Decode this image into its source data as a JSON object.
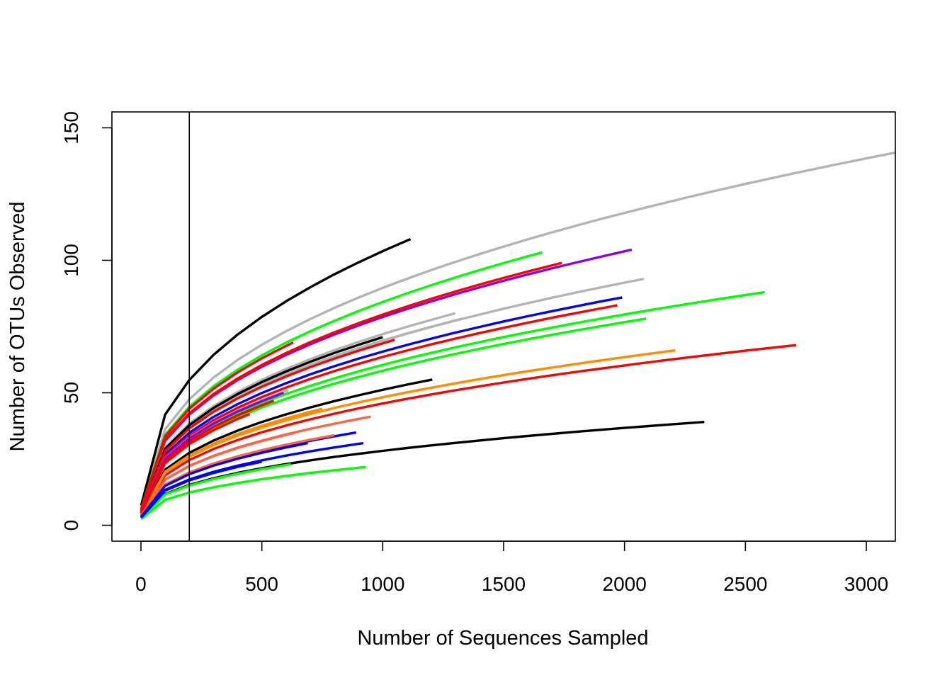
{
  "chart_data": {
    "type": "line",
    "title": "",
    "xlabel": "Number of Sequences Sampled",
    "ylabel": "Number of OTUs Observed",
    "xlim": [
      -120,
      3120
    ],
    "ylim": [
      -6,
      156
    ],
    "xticks": [
      0,
      500,
      1000,
      1500,
      2000,
      2500,
      3000
    ],
    "yticks": [
      0,
      50,
      100,
      150
    ],
    "vline": 200,
    "grid": false,
    "legend": "none",
    "series": [
      {
        "color": "#b3b3b3",
        "max_x": 3140,
        "max_y": 141
      },
      {
        "color": "#000000",
        "max_x": 1115,
        "max_y": 108
      },
      {
        "color": "#00ff00",
        "max_x": 1660,
        "max_y": 103
      },
      {
        "color": "#8a00ee",
        "max_x": 2030,
        "max_y": 104
      },
      {
        "color": "#ff0000",
        "max_x": 1740,
        "max_y": 99
      },
      {
        "color": "#b3b3b3",
        "max_x": 2080,
        "max_y": 93
      },
      {
        "color": "#0000ff",
        "max_x": 1990,
        "max_y": 86
      },
      {
        "color": "#00ff00",
        "max_x": 2580,
        "max_y": 88
      },
      {
        "color": "#ff0000",
        "max_x": 1970,
        "max_y": 83
      },
      {
        "color": "#b3b3b3",
        "max_x": 1300,
        "max_y": 80
      },
      {
        "color": "#b3b3b3",
        "max_x": 1330,
        "max_y": 78
      },
      {
        "color": "#00ff00",
        "max_x": 2090,
        "max_y": 78
      },
      {
        "color": "#000000",
        "max_x": 1000,
        "max_y": 71
      },
      {
        "color": "#ff0000",
        "max_x": 1050,
        "max_y": 70
      },
      {
        "color": "#ff0000",
        "max_x": 630,
        "max_y": 69
      },
      {
        "color": "#ff0000",
        "max_x": 2710,
        "max_y": 68
      },
      {
        "color": "#ff8c00",
        "max_x": 2210,
        "max_y": 66
      },
      {
        "color": "#000000",
        "max_x": 1205,
        "max_y": 55
      },
      {
        "color": "#b3b3b3",
        "max_x": 610,
        "max_y": 51
      },
      {
        "color": "#8a00ee",
        "max_x": 590,
        "max_y": 50
      },
      {
        "color": "#ff0000",
        "max_x": 550,
        "max_y": 47
      },
      {
        "color": "#ff8c00",
        "max_x": 750,
        "max_y": 44
      },
      {
        "color": "#ff0000",
        "max_x": 450,
        "max_y": 42
      },
      {
        "color": "#ff6347",
        "max_x": 950,
        "max_y": 41
      },
      {
        "color": "#0000ff",
        "max_x": 890,
        "max_y": 35
      },
      {
        "color": "#ff6347",
        "max_x": 640,
        "max_y": 35
      },
      {
        "color": "#ff6347",
        "max_x": 800,
        "max_y": 34
      },
      {
        "color": "#0000ff",
        "max_x": 920,
        "max_y": 31
      },
      {
        "color": "#0000ff",
        "max_x": 690,
        "max_y": 31
      },
      {
        "color": "#000000",
        "max_x": 2330,
        "max_y": 39
      },
      {
        "color": "#00ff00",
        "max_x": 930,
        "max_y": 22
      },
      {
        "color": "#00ff00",
        "max_x": 620,
        "max_y": 23
      },
      {
        "color": "#0000ff",
        "max_x": 500,
        "max_y": 24
      }
    ]
  }
}
